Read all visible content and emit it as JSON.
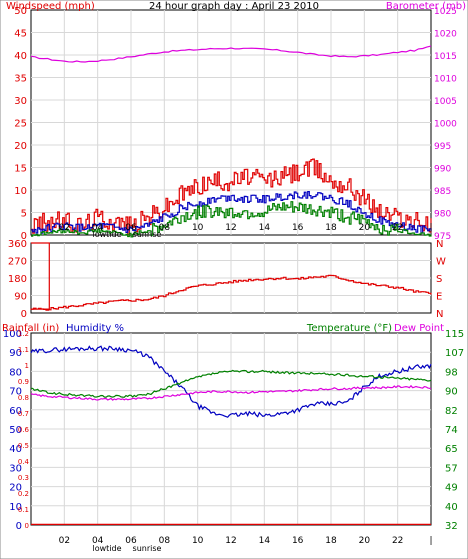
{
  "chart_data": [
    {
      "type": "line",
      "title": "24 hour graph day : April 23 2010",
      "ylabel_left": "Windspeed (mph)",
      "ylabel_right": "Barometer (mb)",
      "x_ticks": [
        "02",
        "04",
        "06",
        "08",
        "10",
        "12",
        "14",
        "16",
        "18",
        "20",
        "22"
      ],
      "x_annotations": [
        "lowtide",
        "sunrise"
      ],
      "ylim_left": [
        0,
        50
      ],
      "yticks_left": [
        0,
        5,
        10,
        15,
        20,
        25,
        30,
        35,
        40,
        45,
        50
      ],
      "ylim_right": [
        975,
        1025
      ],
      "yticks_right": [
        975,
        980,
        985,
        990,
        995,
        1000,
        1005,
        1010,
        1015,
        1020,
        1025
      ],
      "grid": true,
      "colors": {
        "gust": "#e00000",
        "average": "#0000c0",
        "low": "#008000",
        "barometer": "#dd00dd",
        "axis_left": "#e00000",
        "axis_right": "#dd00dd",
        "title": "#000000"
      },
      "series": [
        {
          "axis": "right",
          "color": "#dd00dd",
          "hours": [
            0,
            1,
            2,
            3,
            4,
            5,
            6,
            7,
            8,
            9,
            10,
            11,
            12,
            13,
            14,
            15,
            16,
            17,
            18,
            19,
            20,
            21,
            22,
            23,
            24
          ],
          "values": [
            1014.6,
            1014.1,
            1013.6,
            1013.5,
            1013.7,
            1014.1,
            1014.6,
            1015.2,
            1015.7,
            1016.0,
            1016.2,
            1016.4,
            1016.5,
            1016.4,
            1016.3,
            1016.0,
            1015.6,
            1015.1,
            1014.8,
            1014.6,
            1014.8,
            1015.1,
            1015.6,
            1016.0,
            1016.9
          ]
        },
        {
          "axis": "left",
          "color": "#e00000",
          "hours": [
            0,
            1,
            2,
            3,
            4,
            5,
            6,
            7,
            8,
            9,
            10,
            11,
            12,
            13,
            14,
            15,
            16,
            17,
            18,
            19,
            20,
            21,
            22,
            23,
            24
          ],
          "values": [
            2,
            3,
            3,
            2,
            4,
            3,
            2,
            4,
            6,
            9,
            11,
            12,
            12,
            13,
            12,
            13,
            14,
            15,
            12,
            11,
            8,
            5,
            4,
            3,
            2
          ]
        },
        {
          "axis": "left",
          "color": "#0000c0",
          "hours": [
            0,
            1,
            2,
            3,
            4,
            5,
            6,
            7,
            8,
            9,
            10,
            11,
            12,
            13,
            14,
            15,
            16,
            17,
            18,
            19,
            20,
            21,
            22,
            23,
            24
          ],
          "values": [
            1,
            1.5,
            2,
            1.5,
            2,
            1.5,
            1,
            2,
            4,
            6,
            7,
            8,
            8.5,
            8,
            8,
            8.5,
            9,
            9,
            8,
            7,
            5,
            3,
            2,
            1.5,
            1
          ]
        },
        {
          "axis": "left",
          "color": "#008000",
          "hours": [
            0,
            1,
            2,
            3,
            4,
            5,
            6,
            7,
            8,
            9,
            10,
            11,
            12,
            13,
            14,
            15,
            16,
            17,
            18,
            19,
            20,
            21,
            22,
            23,
            24
          ],
          "values": [
            0,
            0.5,
            1,
            0.5,
            1,
            0.5,
            0,
            1,
            2,
            4,
            5,
            5.5,
            5,
            5,
            5,
            6,
            6,
            5.5,
            5,
            4,
            3,
            1.5,
            1,
            0.5,
            0
          ]
        }
      ]
    },
    {
      "type": "line",
      "title": "",
      "yticks_left": [
        "360",
        "270",
        "180",
        "90",
        "0"
      ],
      "ylim_left": [
        0,
        360
      ],
      "yticks_right": [
        "N",
        "W",
        "S",
        "E",
        "N"
      ],
      "grid": true,
      "series": [
        {
          "color": "#e00000",
          "hours": [
            0,
            0.9,
            1,
            2,
            3,
            4,
            5,
            6,
            7,
            8,
            9,
            10,
            11,
            12,
            13,
            14,
            15,
            16,
            17,
            18,
            19,
            20,
            21,
            22,
            23,
            24
          ],
          "values": [
            360,
            360,
            20,
            30,
            40,
            50,
            60,
            65,
            70,
            90,
            120,
            140,
            150,
            160,
            170,
            175,
            180,
            175,
            185,
            190,
            170,
            150,
            140,
            130,
            110,
            100
          ]
        }
      ]
    },
    {
      "type": "line",
      "title": "",
      "ylabel_left_1": "Rainfall (in)",
      "ylabel_left_2": "Humidity %",
      "ylabel_right_1": "Temperature (°F)",
      "ylabel_right_2": "Dew Point",
      "yticks_left_humidity": [
        0,
        10,
        20,
        30,
        40,
        50,
        60,
        70,
        80,
        90,
        100
      ],
      "yticks_left_rain": [
        "0",
        "0.1",
        "0.2",
        "0.3",
        "0.4",
        "0.5",
        "0.6",
        "0.7",
        "0.8",
        "0.9",
        "1",
        "1.1",
        "1.2"
      ],
      "yticks_right": [
        32,
        40,
        49,
        57,
        65,
        74,
        82,
        90,
        98,
        107,
        115
      ],
      "ylim_left": [
        0,
        100
      ],
      "ylim_right": [
        32,
        115
      ],
      "x_ticks": [
        "02",
        "04",
        "06",
        "08",
        "10",
        "12",
        "14",
        "16",
        "18",
        "20",
        "22"
      ],
      "x_annotations": [
        "lowtide",
        "sunrise"
      ],
      "grid": true,
      "series": [
        {
          "color": "#0000c0",
          "hours": [
            0,
            1,
            2,
            3,
            4,
            5,
            6,
            7,
            8,
            9,
            10,
            11,
            12,
            13,
            14,
            15,
            16,
            17,
            18,
            19,
            20,
            21,
            22,
            23,
            24
          ],
          "values": [
            90,
            91,
            91.5,
            92,
            92,
            92,
            91,
            88,
            80,
            72,
            62,
            58,
            57,
            58,
            57,
            58,
            60,
            63,
            63,
            64,
            72,
            78,
            80,
            82,
            83
          ]
        },
        {
          "color": "#008000",
          "hours": [
            0,
            1,
            2,
            3,
            4,
            5,
            6,
            7,
            8,
            9,
            10,
            11,
            12,
            13,
            14,
            15,
            16,
            17,
            18,
            19,
            20,
            21,
            22,
            23,
            24
          ],
          "values": [
            71,
            69,
            68,
            67.5,
            67,
            67,
            67,
            68,
            71,
            74,
            77,
            79,
            80,
            80,
            80,
            79.5,
            79,
            79,
            78.5,
            78,
            77.5,
            77,
            76.5,
            76,
            75.5
          ]
        },
        {
          "color": "#dd00dd",
          "hours": [
            0,
            1,
            2,
            3,
            4,
            5,
            6,
            7,
            8,
            9,
            10,
            11,
            12,
            13,
            14,
            15,
            16,
            17,
            18,
            19,
            20,
            21,
            22,
            23,
            24
          ],
          "values": [
            68,
            67,
            66.5,
            66,
            65.5,
            65.5,
            65.5,
            66,
            67,
            68,
            69,
            69.5,
            69.5,
            69,
            69.5,
            69.5,
            70,
            70.5,
            71,
            71,
            71.5,
            71.5,
            72,
            72,
            71.5
          ]
        },
        {
          "color": "#e00000",
          "hours": [
            0,
            24
          ],
          "values": [
            0,
            0
          ]
        }
      ]
    }
  ]
}
